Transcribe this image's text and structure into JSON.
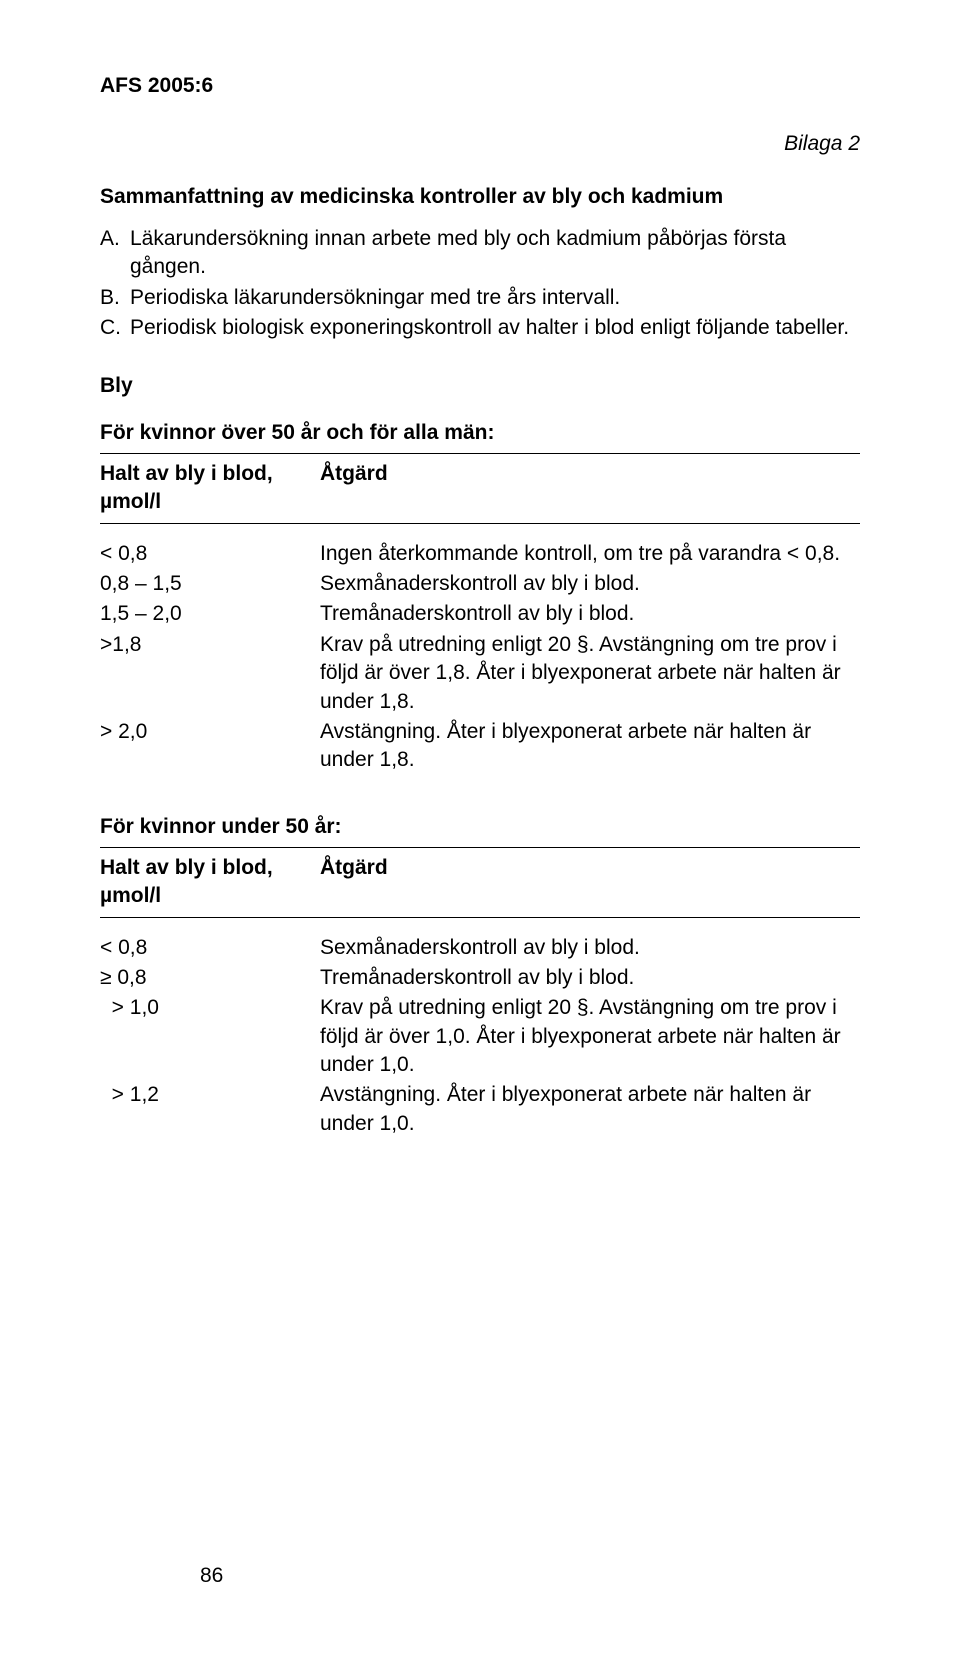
{
  "header": "AFS 2005:6",
  "bilaga": "Bilaga 2",
  "mainTitle": "Sammanfattning av medicinska kontroller av bly och kadmium",
  "intro": [
    {
      "label": "A.",
      "text": "Läkarundersökning innan arbete med bly och kadmium påbörjas första gången."
    },
    {
      "label": "B.",
      "text": "Periodiska läkarundersökningar med tre års intervall."
    },
    {
      "label": "C.",
      "text": "Periodisk biologisk exponeringskontroll av halter i blod enligt följande tabeller."
    }
  ],
  "blyTitle": "Bly",
  "table1": {
    "caption": "För kvinnor över 50 år och för alla män:",
    "head": {
      "left": "Halt av bly i blod, µmol/l",
      "right": "Åtgärd"
    },
    "rows": [
      {
        "left": "< 0,8",
        "right": "Ingen återkommande kontroll, om tre på varandra < 0,8."
      },
      {
        "left": "0,8 – 1,5",
        "right": "Sexmånaderskontroll av bly i blod."
      },
      {
        "left": "1,5 – 2,0",
        "right": "Tremånaderskontroll av bly i blod."
      },
      {
        "left": ">1,8",
        "right": "Krav på utredning enligt 20 §. Avstängning om tre prov i följd är över 1,8. Åter i blyexponerat arbete när halten är under 1,8."
      },
      {
        "left": "> 2,0",
        "right": "Avstängning. Åter i blyexponerat arbete när halten är under 1,8."
      }
    ]
  },
  "table2": {
    "caption": "För kvinnor under 50 år:",
    "head": {
      "left": "Halt av bly i blod, µmol/l",
      "right": "Åtgärd"
    },
    "rows": [
      {
        "left": "< 0,8",
        "right": "Sexmånaderskontroll av bly i blod."
      },
      {
        "left": "≥ 0,8",
        "right": "Tremånaderskontroll av bly i blod."
      },
      {
        "left": "  > 1,0",
        "right": "Krav på utredning enligt 20 §. Avstängning om tre prov i följd är över 1,0. Åter i blyexponerat arbete när halten är under 1,0."
      },
      {
        "left": "  > 1,2",
        "right": "Avstängning. Åter i blyexponerat arbete när halten är under 1,0."
      }
    ]
  },
  "pageNumber": "86"
}
